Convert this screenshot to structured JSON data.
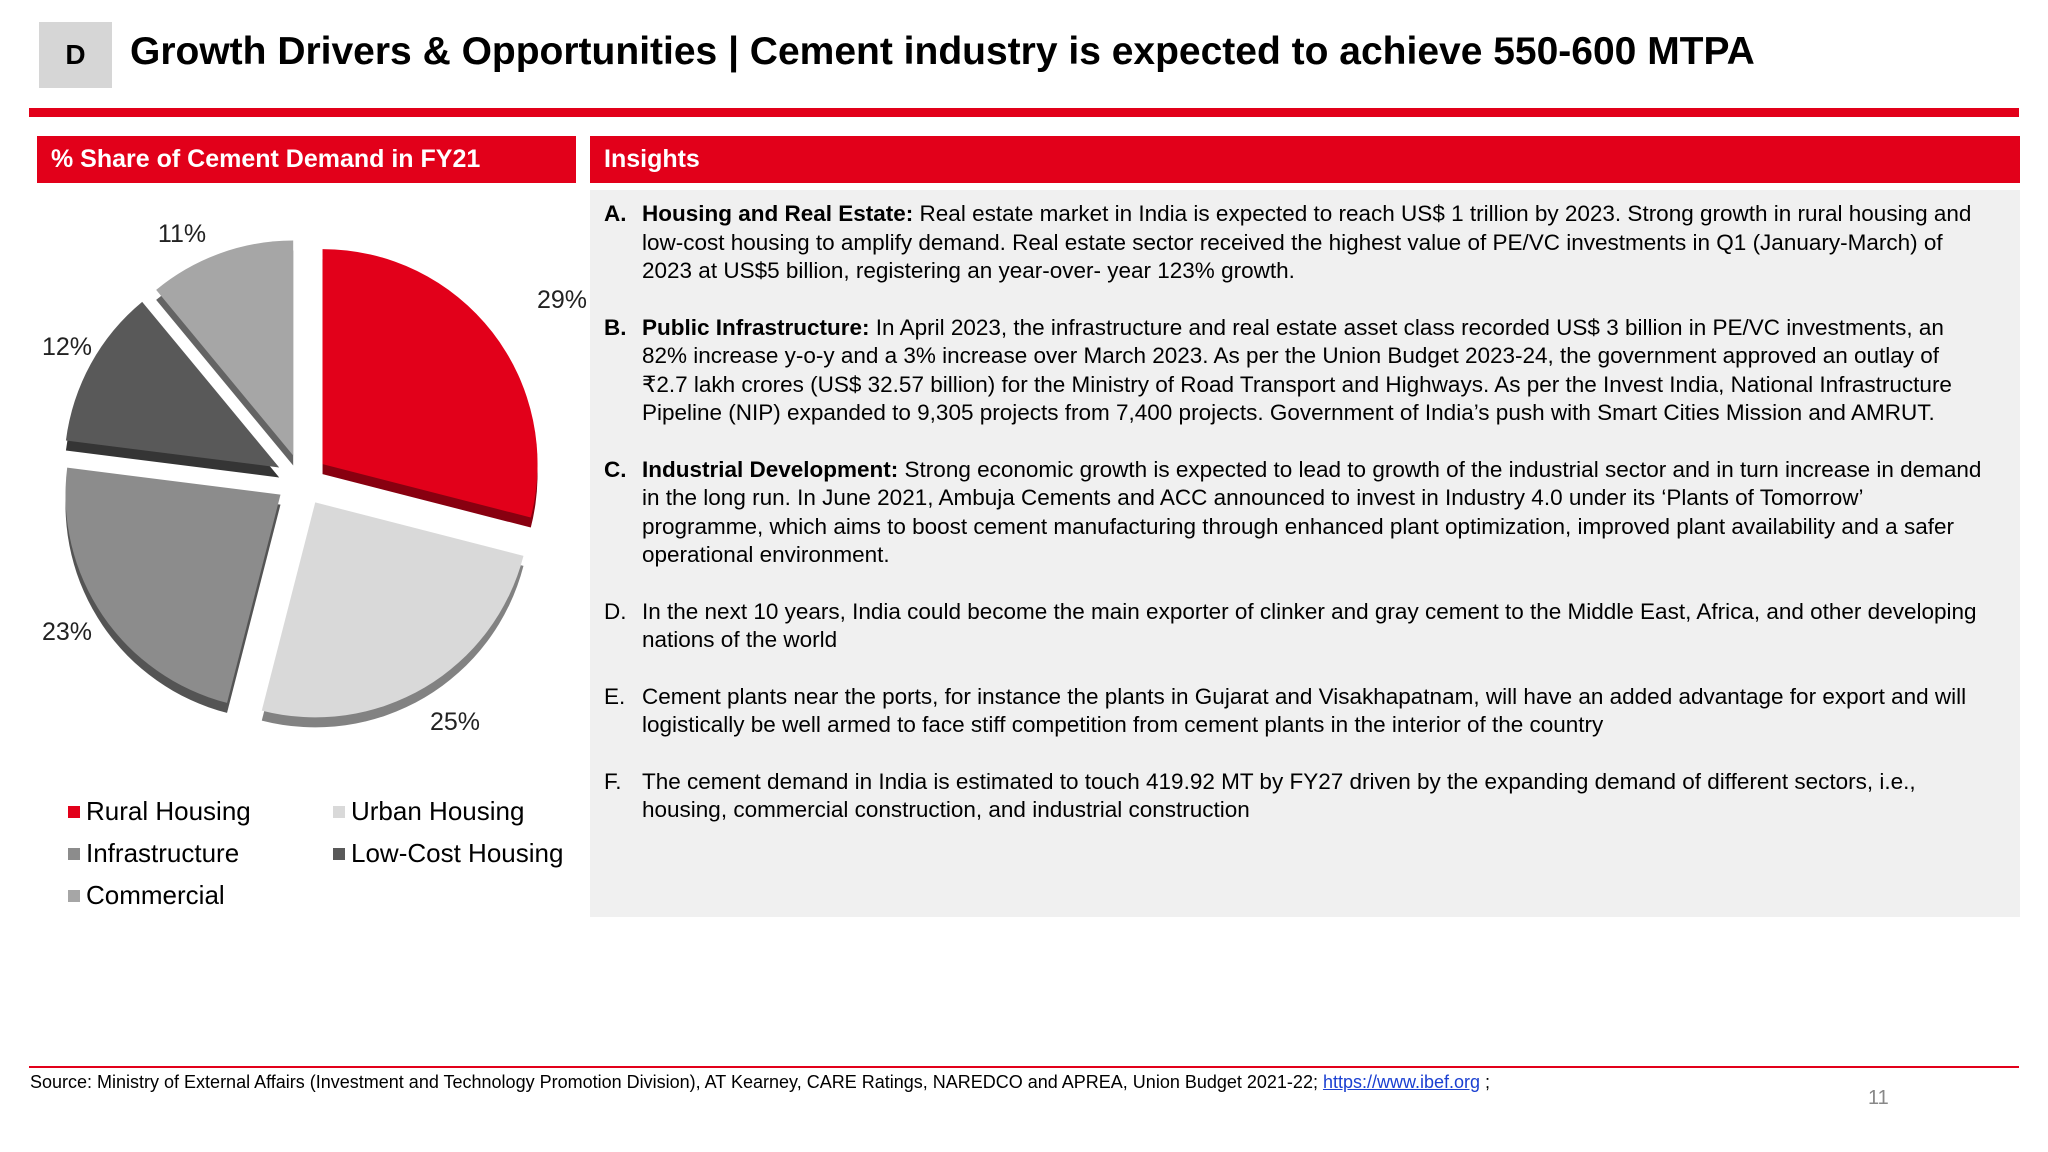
{
  "header": {
    "badge": "D",
    "title": "Growth Drivers & Opportunities | Cement industry is expected to achieve 550-600  MTPA"
  },
  "left_panel": {
    "heading": "% Share of Cement Demand in FY21"
  },
  "chart_data": {
    "type": "pie",
    "title": "% Share of Cement Demand in FY21",
    "exploded": true,
    "labels": [
      "Rural Housing",
      "Urban Housing",
      "Infrastructure",
      "Low-Cost Housing",
      "Commercial"
    ],
    "values": [
      29,
      25,
      23,
      12,
      11
    ],
    "value_labels": [
      "29%",
      "25%",
      "23%",
      "12%",
      "11%"
    ],
    "colors": [
      "#e2001a",
      "#d9d9d9",
      "#8c8c8c",
      "#595959",
      "#a6a6a6"
    ],
    "legend_position": "bottom"
  },
  "legend": {
    "items": [
      {
        "label": "Rural Housing",
        "color": "#e2001a"
      },
      {
        "label": "Urban Housing",
        "color": "#d9d9d9"
      },
      {
        "label": "Infrastructure",
        "color": "#8c8c8c"
      },
      {
        "label": "Low-Cost Housing",
        "color": "#595959"
      },
      {
        "label": "Commercial",
        "color": "#a6a6a6"
      }
    ]
  },
  "insights": {
    "heading": "Insights",
    "items": [
      {
        "letter": "A.",
        "bold": "Housing and Real Estate:",
        "text": " Real estate market in India is expected to reach US$ 1 trillion by 2023.  Strong growth in rural housing and low-cost housing to amplify  demand. Real estate sector received the highest value of PE/VC investments in  Q1 (January-March) of 2023 at US$5 billion, registering an year-over-  year 123% growth."
      },
      {
        "letter": "B.",
        "bold": "Public Infrastructure:",
        "text": " In April 2023, the infrastructure and real estate asset class recorded  US$ 3 billion in PE/VC investments, an 82% increase y-o-y and a 3%  increase over March 2023. As per the Union Budget 2023-24, the government approved an outlay  of ₹2.7 lakh crores (US$ 32.57 billion) for the Ministry of Road  Transport and Highways. As per the Invest India, National Infrastructure Pipeline (NIP) expanded to 9,305 projects from 7,400 projects. Government of India’s push with Smart Cities Mission and AMRUT."
      },
      {
        "letter": "C.",
        "bold": "Industrial Development:",
        "text": " Strong economic growth is expected to lead to growth of the industrial sector and in turn increase in demand in the long run. In June 2021, Ambuja Cements and ACC announced to invest in Industry 4.0 under its ‘Plants of Tomorrow’ programme, which aims to boost  cement manufacturing through enhanced plant optimization, improved plant availability and a safer operational environment."
      },
      {
        "letter": "D.",
        "bold": "",
        "text": "In the next 10 years, India could become the main exporter of clinker and gray cement to the Middle East, Africa, and other developing nations of the world"
      },
      {
        "letter": "E.",
        "bold": "",
        "text": "Cement plants near the ports, for instance the plants in Gujarat and Visakhapatnam, will have an added advantage for export and will logistically be well armed to face stiff competition from cement plants in the interior of the country"
      },
      {
        "letter": "F.",
        "bold": "",
        "text": "The cement demand in India is estimated to touch 419.92 MT by FY27 driven by the expanding demand of different sectors, i.e., housing, commercial construction, and industrial construction"
      }
    ]
  },
  "footer": {
    "source_text": "Source: Ministry of External Affairs (Investment and Technology Promotion Division), AT Kearney, CARE Ratings, NAREDCO and APREA, Union Budget 2021-22; ",
    "source_link": "https://www.ibef.org",
    "source_tail": " ;",
    "page_number": "11"
  }
}
